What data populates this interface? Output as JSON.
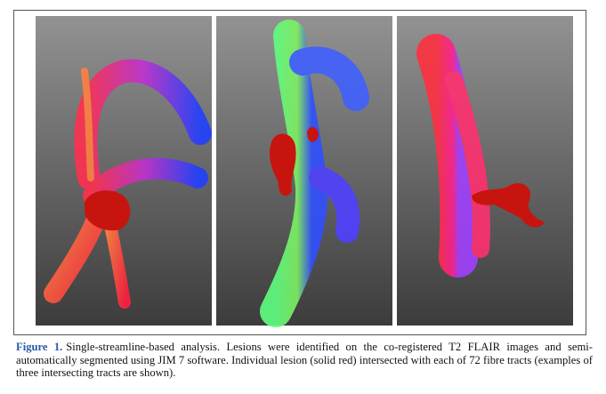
{
  "figure": {
    "label": "Figure 1.",
    "caption": "Single-streamline-based analysis. Lesions were identified on the co-registered T2 FLAIR images and semi-automatically segmented using JIM 7 software. Individual lesion (solid red) intersected with each of 72 fibre tracts (examples of three intersecting tracts are shown)."
  }
}
